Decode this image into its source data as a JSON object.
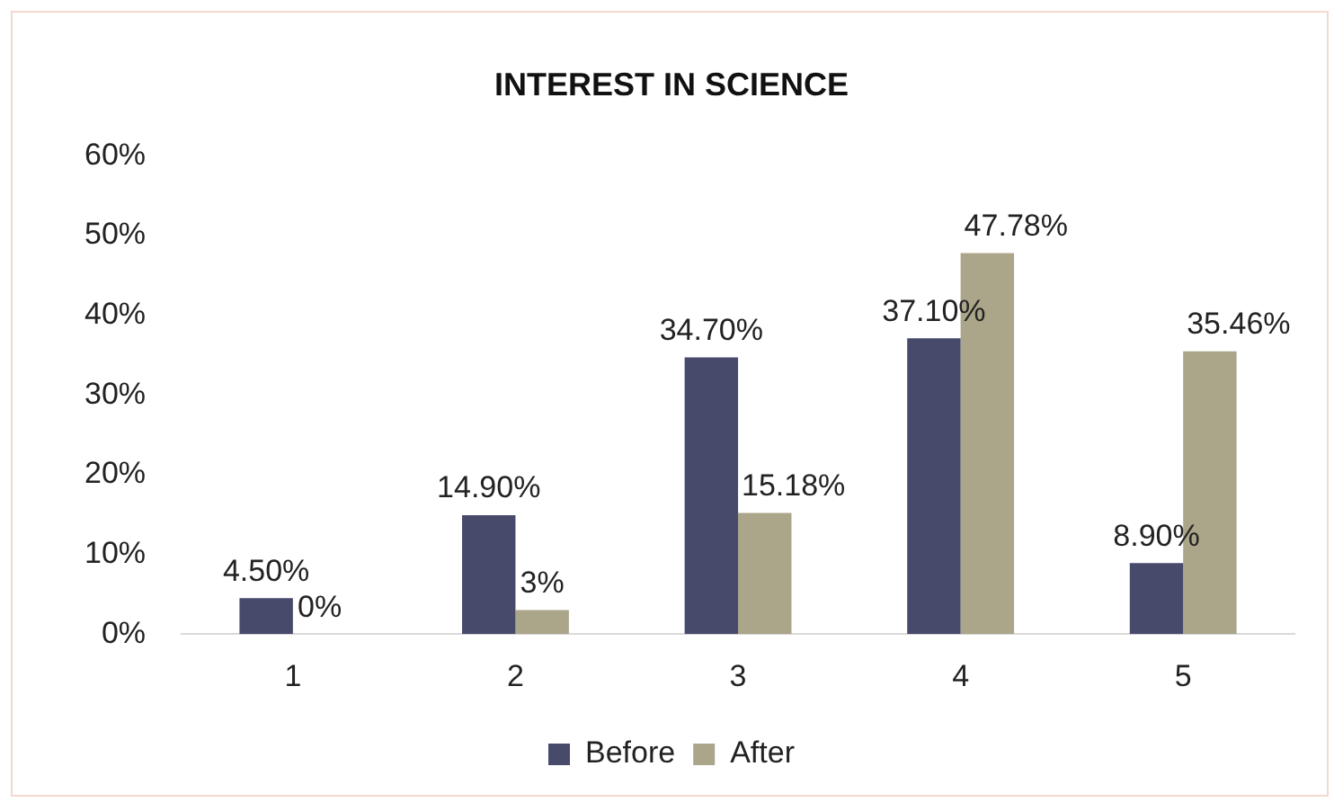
{
  "chart_data": {
    "type": "bar",
    "title": "INTEREST IN SCIENCE",
    "categories": [
      "1",
      "2",
      "3",
      "4",
      "5"
    ],
    "series": [
      {
        "name": "Before",
        "color": "#474a6b",
        "values": [
          4.5,
          14.9,
          34.7,
          37.1,
          8.9
        ],
        "value_labels": [
          "4.50%",
          "14.90%",
          "34.70%",
          "37.10%",
          "8.90%"
        ]
      },
      {
        "name": "After",
        "color": "#aba58a",
        "values": [
          0,
          3,
          15.18,
          47.78,
          35.46
        ],
        "value_labels": [
          "0%",
          "3%",
          "15.18%",
          "47.78%",
          "35.46%"
        ]
      }
    ],
    "ylim": [
      0,
      60
    ],
    "yticks": [
      {
        "value": 0,
        "label": "0%"
      },
      {
        "value": 10,
        "label": "10%"
      },
      {
        "value": 20,
        "label": "20%"
      },
      {
        "value": 30,
        "label": "30%"
      },
      {
        "value": 40,
        "label": "40%"
      },
      {
        "value": 50,
        "label": "50%"
      },
      {
        "value": 60,
        "label": "60%"
      }
    ],
    "grid": false,
    "legend": "bottom"
  }
}
